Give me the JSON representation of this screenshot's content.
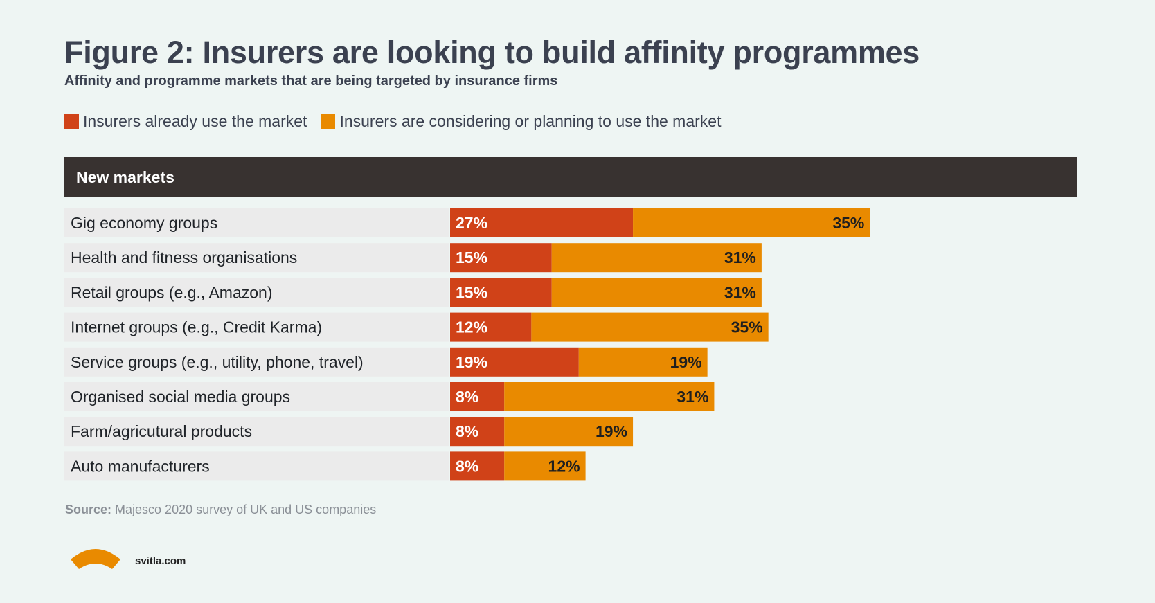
{
  "title": "Figure 2: Insurers are looking to build affinity programmes",
  "subtitle": "Affinity and programme markets that are being targeted by insurance firms",
  "legend": {
    "already": "Insurers already use the market",
    "considering": "Insurers are considering or planning to use the market"
  },
  "section_header": "New markets",
  "source": {
    "label": "Source:",
    "text": " Majesco 2020 survey of UK and US companies"
  },
  "logo_text": "svitla.com",
  "colors": {
    "already": "#d04218",
    "considering": "#e98a00",
    "row_bg": "#ebebeb",
    "header_bg": "#383230"
  },
  "chart_data": {
    "type": "bar",
    "orientation": "horizontal",
    "stacked": true,
    "categories": [
      "Gig economy groups",
      "Health and fitness organisations",
      "Retail groups (e.g., Amazon)",
      "Internet groups (e.g., Credit Karma)",
      "Service groups (e.g., utility, phone, travel)",
      "Organised social media groups",
      "Farm/agricutural products",
      "Auto manufacturers"
    ],
    "series": [
      {
        "name": "Insurers already use the market",
        "values": [
          27,
          15,
          15,
          12,
          19,
          8,
          8,
          8
        ]
      },
      {
        "name": "Insurers are considering or planning to use the market",
        "values": [
          35,
          31,
          31,
          35,
          19,
          31,
          19,
          12
        ]
      }
    ],
    "value_labels_already": [
      "27%",
      "15%",
      "15%",
      "12%",
      "19%",
      "8%",
      "8%",
      "8%"
    ],
    "value_labels_considering": [
      "35%",
      "31%",
      "31%",
      "35%",
      "19%",
      "31%",
      "19%",
      "12%"
    ],
    "xlim": [
      0,
      100
    ],
    "unit": "%"
  }
}
